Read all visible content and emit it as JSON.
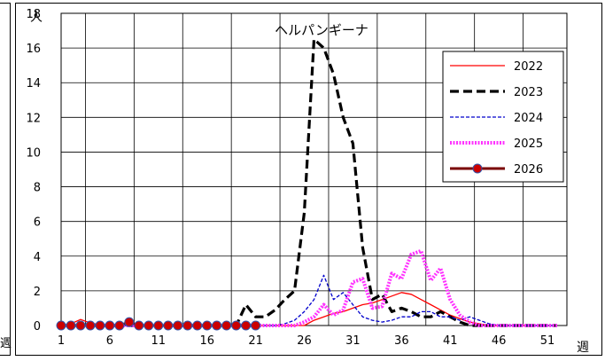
{
  "left_unit": "週",
  "chart_data": {
    "type": "line",
    "title": "ヘルパンギーナ",
    "ylabel": "人",
    "xlabel": "週",
    "xlim": [
      1,
      53
    ],
    "ylim": [
      0,
      18
    ],
    "x_ticks": [
      1,
      6,
      11,
      16,
      21,
      26,
      31,
      36,
      41,
      46,
      51
    ],
    "y_ticks": [
      0,
      2,
      4,
      6,
      8,
      10,
      12,
      14,
      16,
      18
    ],
    "grid": true,
    "legend_position": "top-right",
    "series": [
      {
        "name": "2022",
        "color": "#ff0000",
        "style": "solid",
        "points": [
          [
            1,
            0
          ],
          [
            2,
            0.1
          ],
          [
            3,
            0.35
          ],
          [
            4,
            0.15
          ],
          [
            5,
            0.05
          ],
          [
            6,
            0
          ],
          [
            7,
            0
          ],
          [
            8,
            0
          ],
          [
            9,
            0
          ],
          [
            10,
            0
          ],
          [
            11,
            0
          ],
          [
            12,
            0
          ],
          [
            13,
            0
          ],
          [
            14,
            0
          ],
          [
            15,
            0
          ],
          [
            16,
            0
          ],
          [
            17,
            0
          ],
          [
            18,
            0
          ],
          [
            19,
            0
          ],
          [
            20,
            0
          ],
          [
            21,
            0
          ],
          [
            22,
            0
          ],
          [
            23,
            0
          ],
          [
            24,
            0
          ],
          [
            25,
            0
          ],
          [
            26,
            0
          ],
          [
            27,
            0.3
          ],
          [
            28,
            0.5
          ],
          [
            29,
            0.7
          ],
          [
            30,
            0.8
          ],
          [
            31,
            1.0
          ],
          [
            32,
            1.2
          ],
          [
            33,
            1.3
          ],
          [
            34,
            1.5
          ],
          [
            35,
            1.7
          ],
          [
            36,
            1.9
          ],
          [
            37,
            1.8
          ],
          [
            38,
            1.5
          ],
          [
            39,
            1.2
          ],
          [
            40,
            0.9
          ],
          [
            41,
            0.6
          ],
          [
            42,
            0.4
          ],
          [
            43,
            0.2
          ],
          [
            44,
            0.1
          ],
          [
            45,
            0
          ],
          [
            46,
            0
          ],
          [
            47,
            0
          ],
          [
            48,
            0
          ],
          [
            49,
            0
          ],
          [
            50,
            0
          ],
          [
            51,
            0
          ],
          [
            52,
            0
          ]
        ]
      },
      {
        "name": "2023",
        "color": "#000000",
        "style": "dash-thick",
        "points": [
          [
            1,
            0
          ],
          [
            2,
            0
          ],
          [
            3,
            0
          ],
          [
            4,
            0
          ],
          [
            5,
            0
          ],
          [
            6,
            0
          ],
          [
            7,
            0
          ],
          [
            8,
            0
          ],
          [
            9,
            0
          ],
          [
            10,
            0
          ],
          [
            11,
            0
          ],
          [
            12,
            0
          ],
          [
            13,
            0
          ],
          [
            14,
            0
          ],
          [
            15,
            0
          ],
          [
            16,
            0
          ],
          [
            17,
            0
          ],
          [
            18,
            0
          ],
          [
            19,
            0
          ],
          [
            20,
            1.2
          ],
          [
            21,
            0.5
          ],
          [
            22,
            0.5
          ],
          [
            23,
            0.9
          ],
          [
            24,
            1.5
          ],
          [
            25,
            2.0
          ],
          [
            26,
            6.5
          ],
          [
            27,
            16.5
          ],
          [
            28,
            16.0
          ],
          [
            29,
            14.5
          ],
          [
            30,
            12.0
          ],
          [
            31,
            10.5
          ],
          [
            32,
            4.5
          ],
          [
            33,
            1.5
          ],
          [
            34,
            1.8
          ],
          [
            35,
            0.8
          ],
          [
            36,
            1.0
          ],
          [
            37,
            0.8
          ],
          [
            38,
            0.5
          ],
          [
            39,
            0.5
          ],
          [
            40,
            0.8
          ],
          [
            41,
            0.5
          ],
          [
            42,
            0.2
          ],
          [
            43,
            0
          ],
          [
            44,
            0
          ],
          [
            45,
            0
          ],
          [
            46,
            0
          ],
          [
            47,
            0
          ],
          [
            48,
            0
          ],
          [
            49,
            0
          ],
          [
            50,
            0
          ],
          [
            51,
            0
          ],
          [
            52,
            0
          ]
        ]
      },
      {
        "name": "2024",
        "color": "#0000cc",
        "style": "dash-thin",
        "points": [
          [
            1,
            0
          ],
          [
            2,
            0
          ],
          [
            3,
            0
          ],
          [
            4,
            0
          ],
          [
            5,
            0
          ],
          [
            6,
            0
          ],
          [
            7,
            0
          ],
          [
            8,
            0
          ],
          [
            9,
            0
          ],
          [
            10,
            0
          ],
          [
            11,
            0
          ],
          [
            12,
            0
          ],
          [
            13,
            0
          ],
          [
            14,
            0
          ],
          [
            15,
            0
          ],
          [
            16,
            0
          ],
          [
            17,
            0
          ],
          [
            18,
            0
          ],
          [
            19,
            0
          ],
          [
            20,
            0
          ],
          [
            21,
            0
          ],
          [
            22,
            0
          ],
          [
            23,
            0
          ],
          [
            24,
            0.1
          ],
          [
            25,
            0.3
          ],
          [
            26,
            0.8
          ],
          [
            27,
            1.5
          ],
          [
            28,
            2.9
          ],
          [
            29,
            1.5
          ],
          [
            30,
            1.9
          ],
          [
            31,
            1.2
          ],
          [
            32,
            0.5
          ],
          [
            33,
            0.3
          ],
          [
            34,
            0.2
          ],
          [
            35,
            0.3
          ],
          [
            36,
            0.5
          ],
          [
            37,
            0.5
          ],
          [
            38,
            0.8
          ],
          [
            39,
            0.8
          ],
          [
            40,
            0.5
          ],
          [
            41,
            0.5
          ],
          [
            42,
            0.3
          ],
          [
            43,
            0.5
          ],
          [
            44,
            0.3
          ],
          [
            45,
            0.1
          ],
          [
            46,
            0
          ],
          [
            47,
            0
          ],
          [
            48,
            0
          ],
          [
            49,
            0
          ],
          [
            50,
            0
          ],
          [
            51,
            0
          ],
          [
            52,
            0
          ]
        ]
      },
      {
        "name": "2025",
        "color": "#ff33ff",
        "style": "dotted-thick",
        "points": [
          [
            1,
            0
          ],
          [
            2,
            0
          ],
          [
            3,
            0
          ],
          [
            4,
            0
          ],
          [
            5,
            0
          ],
          [
            6,
            0
          ],
          [
            7,
            0
          ],
          [
            8,
            0
          ],
          [
            9,
            0
          ],
          [
            10,
            0
          ],
          [
            11,
            0
          ],
          [
            12,
            0
          ],
          [
            13,
            0
          ],
          [
            14,
            0
          ],
          [
            15,
            0
          ],
          [
            16,
            0
          ],
          [
            17,
            0
          ],
          [
            18,
            0
          ],
          [
            19,
            0
          ],
          [
            20,
            0
          ],
          [
            21,
            0
          ],
          [
            22,
            0
          ],
          [
            23,
            0
          ],
          [
            24,
            0
          ],
          [
            25,
            0
          ],
          [
            26,
            0.2
          ],
          [
            27,
            0.5
          ],
          [
            28,
            1.2
          ],
          [
            29,
            0.6
          ],
          [
            30,
            0.9
          ],
          [
            31,
            2.5
          ],
          [
            32,
            2.7
          ],
          [
            33,
            1.0
          ],
          [
            34,
            1.1
          ],
          [
            35,
            3.0
          ],
          [
            36,
            2.7
          ],
          [
            37,
            4.1
          ],
          [
            38,
            4.3
          ],
          [
            39,
            2.6
          ],
          [
            40,
            3.3
          ],
          [
            41,
            1.5
          ],
          [
            42,
            0.6
          ],
          [
            43,
            0.2
          ],
          [
            44,
            0
          ],
          [
            45,
            0
          ],
          [
            46,
            0
          ],
          [
            47,
            0
          ],
          [
            48,
            0
          ],
          [
            49,
            0
          ],
          [
            50,
            0
          ],
          [
            51,
            0
          ],
          [
            52,
            0
          ]
        ]
      },
      {
        "name": "2026",
        "color": "#7a0000",
        "marker_color": "#cc0000",
        "marker_edge": "#3355aa",
        "style": "solid-markers",
        "points": [
          [
            1,
            0
          ],
          [
            2,
            0
          ],
          [
            3,
            0
          ],
          [
            4,
            0
          ],
          [
            5,
            0
          ],
          [
            6,
            0
          ],
          [
            7,
            0
          ],
          [
            8,
            0.2
          ],
          [
            9,
            0
          ],
          [
            10,
            0
          ],
          [
            11,
            0
          ],
          [
            12,
            0
          ],
          [
            13,
            0
          ],
          [
            14,
            0
          ],
          [
            15,
            0
          ],
          [
            16,
            0
          ],
          [
            17,
            0
          ],
          [
            18,
            0
          ],
          [
            19,
            0
          ],
          [
            20,
            0
          ],
          [
            21,
            0
          ]
        ]
      }
    ]
  }
}
